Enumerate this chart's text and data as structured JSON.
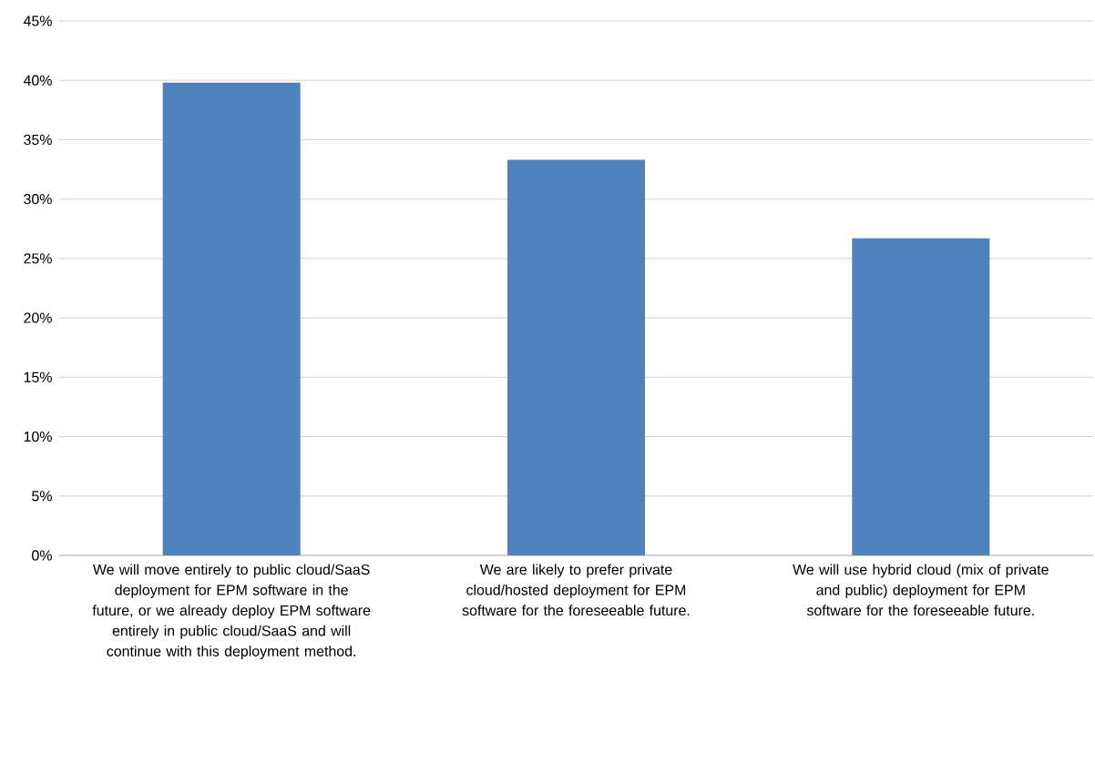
{
  "chart_data": {
    "type": "bar",
    "categories": [
      "We will move entirely to public cloud/SaaS deployment for EPM software in the future, or we already deploy EPM software entirely in public cloud/SaaS and will continue with this deployment method.",
      "We are likely to prefer private cloud/hosted deployment for EPM software for the foreseeable future.",
      "We will use hybrid cloud (mix of private and public) deployment for EPM software for the foreseeable future."
    ],
    "values": [
      39.8,
      33.3,
      26.7
    ],
    "color": "#4f81bd",
    "ylim": [
      0,
      45
    ],
    "yticks": [
      {
        "value": 0,
        "label": "0%"
      },
      {
        "value": 5,
        "label": "5%"
      },
      {
        "value": 10,
        "label": "10%"
      },
      {
        "value": 15,
        "label": "15%"
      },
      {
        "value": 20,
        "label": "20%"
      },
      {
        "value": 25,
        "label": "25%"
      },
      {
        "value": 30,
        "label": "30%"
      },
      {
        "value": 35,
        "label": "35%"
      },
      {
        "value": 40,
        "label": "40%"
      },
      {
        "value": 45,
        "label": "45%"
      }
    ],
    "grid": "y"
  }
}
